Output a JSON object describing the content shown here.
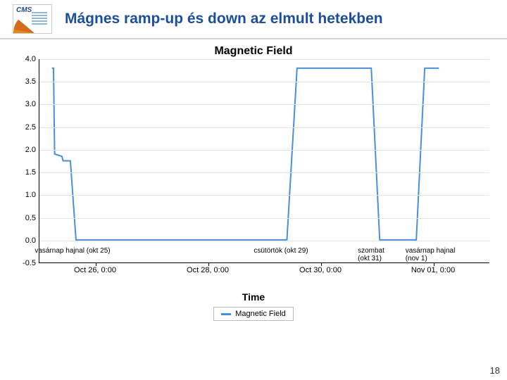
{
  "header": {
    "logo_text": "CMS",
    "title": "Mágnes ramp-up és down az elmult hetekben"
  },
  "chart": {
    "type": "line",
    "title": "Magnetic Field",
    "title_fontsize": 16,
    "xlabel": "Time",
    "label_fontsize": 14,
    "background_color": "#ffffff",
    "grid_color": "#e6e6e6",
    "axis_color": "#000000",
    "line_color": "#4a90d9",
    "line_width": 2,
    "ylim": [
      -0.5,
      4.0
    ],
    "ytick_step": 0.5,
    "yticks": [
      -0.5,
      0.0,
      0.5,
      1.0,
      1.5,
      2.0,
      2.5,
      3.0,
      3.5,
      4.0
    ],
    "xlim": [
      0,
      8
    ],
    "xticks": [
      {
        "t": 1.0,
        "label": "Oct 26, 0:00"
      },
      {
        "t": 3.0,
        "label": "Oct 28, 0:00"
      },
      {
        "t": 5.0,
        "label": "Oct 30, 0:00"
      },
      {
        "t": 7.0,
        "label": "Nov 01, 0:00"
      }
    ],
    "series": [
      {
        "t": 0.22,
        "v": 3.8
      },
      {
        "t": 0.25,
        "v": 3.8
      },
      {
        "t": 0.27,
        "v": 1.9
      },
      {
        "t": 0.4,
        "v": 1.85
      },
      {
        "t": 0.42,
        "v": 1.75
      },
      {
        "t": 0.55,
        "v": 1.75
      },
      {
        "t": 0.65,
        "v": 0.0
      },
      {
        "t": 4.4,
        "v": 0.0
      },
      {
        "t": 4.58,
        "v": 3.8
      },
      {
        "t": 5.9,
        "v": 3.8
      },
      {
        "t": 6.05,
        "v": 0.0
      },
      {
        "t": 6.7,
        "v": 0.0
      },
      {
        "t": 6.85,
        "v": 3.8
      },
      {
        "t": 7.1,
        "v": 3.8
      }
    ],
    "legend": {
      "label": "Magnetic Field",
      "color": "#4a90d9"
    }
  },
  "annotations": [
    {
      "text": "vasárnap hajnal (okt 25)",
      "t": 0.6,
      "v": -0.15
    },
    {
      "text": "csütörtök (okt 29)",
      "t": 4.3,
      "v": -0.15
    },
    {
      "text_line1": "szombat",
      "text_line2": "(okt 31)",
      "t": 5.9,
      "v": -0.15
    },
    {
      "text_line1": "vasárnap hajnal",
      "text_line2": "(nov 1)",
      "t": 6.95,
      "v": -0.15
    }
  ],
  "page_number": "18",
  "colors": {
    "title_color": "#1b4f9c",
    "text_color": "#000000"
  }
}
